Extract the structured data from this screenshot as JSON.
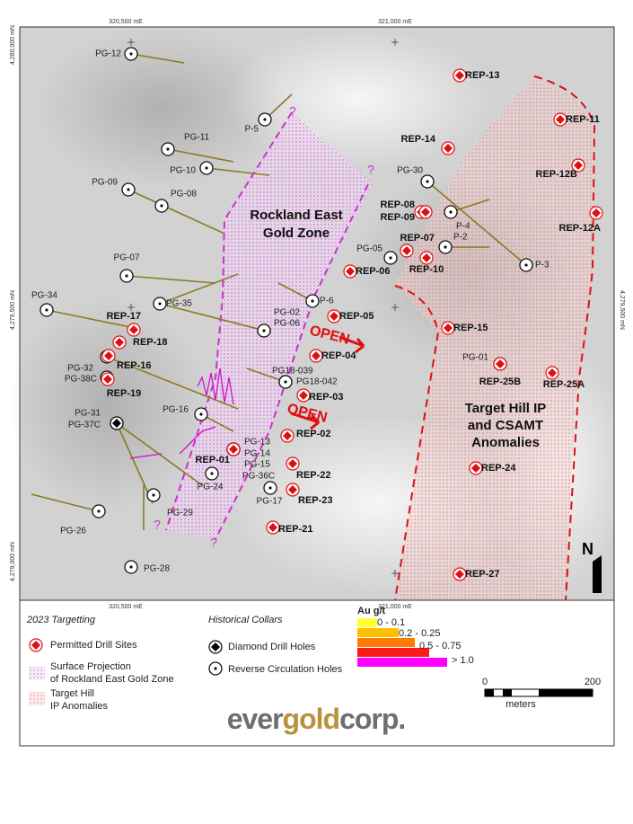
{
  "map": {
    "coordinate_labels": {
      "top": [
        "320,500 mE",
        "321,000 mE"
      ],
      "bottom": [
        "320,500 mE",
        "321,000 mE"
      ],
      "left": [
        "4,280,000 mN",
        "4,279,500 mN",
        "4,279,000 mN"
      ],
      "right": [
        "4,279,500 mN"
      ]
    },
    "zone_labels": {
      "rockland": [
        "Rockland East",
        "Gold Zone"
      ],
      "target_hill": [
        "Target Hill IP",
        "and CSAMT",
        "Anomalies"
      ],
      "open": [
        "OPEN",
        "OPEN"
      ],
      "question_marks": [
        "?",
        "?",
        "?",
        "?"
      ]
    },
    "permitted_drill_sites": [
      "REP-13",
      "REP-11",
      "REP-14",
      "REP-12B",
      "REP-12A",
      "REP-08",
      "REP-09",
      "REP-07",
      "REP-10",
      "REP-06",
      "REP-05",
      "REP-15",
      "REP-04",
      "REP-03",
      "REP-02",
      "REP-22",
      "REP-23",
      "REP-21",
      "REP-01",
      "REP-25B",
      "REP-25A",
      "REP-24",
      "REP-27",
      "REP-17",
      "REP-18",
      "REP-16",
      "REP-19"
    ],
    "historical_collars": [
      "PG-12",
      "P-5",
      "PG-11",
      "PG-10",
      "PG-09",
      "PG-08",
      "PG-07",
      "PG-34",
      "PG-35",
      "PG-02",
      "PG-06",
      "P-6",
      "PG18-039",
      "PG18-042",
      "PG-05",
      "PG-30",
      "P-4",
      "P-2",
      "P-3",
      "PG-01",
      "PG-32",
      "PG-38C",
      "PG-31",
      "PG-37C",
      "PG-16",
      "PG-13",
      "PG-14",
      "PG-15",
      "PG-36C",
      "PG-24",
      "PG-17",
      "PG-29",
      "PG-26",
      "PG-28"
    ],
    "north_label": "N"
  },
  "legend": {
    "targeting_title": "2023 Targetting",
    "permitted": "Permitted Drill Sites",
    "rockland_projection": [
      "Surface Projection",
      "of Rockland East Gold Zone"
    ],
    "target_hill": [
      "Target Hill",
      "IP Anomalies"
    ],
    "collars_title": "Historical Collars",
    "diamond": "Diamond Drill Holes",
    "reverse": "Reverse Circulation Holes",
    "au_title": "Au g/t",
    "au_classes": [
      "0 - 0.1",
      "0.2 - 0.25",
      "0.5 - 0.75",
      "> 1.0"
    ],
    "scale": [
      "0",
      "200"
    ],
    "scale_unit": "meters"
  },
  "logo": [
    "ever",
    "gold",
    "corp."
  ]
}
